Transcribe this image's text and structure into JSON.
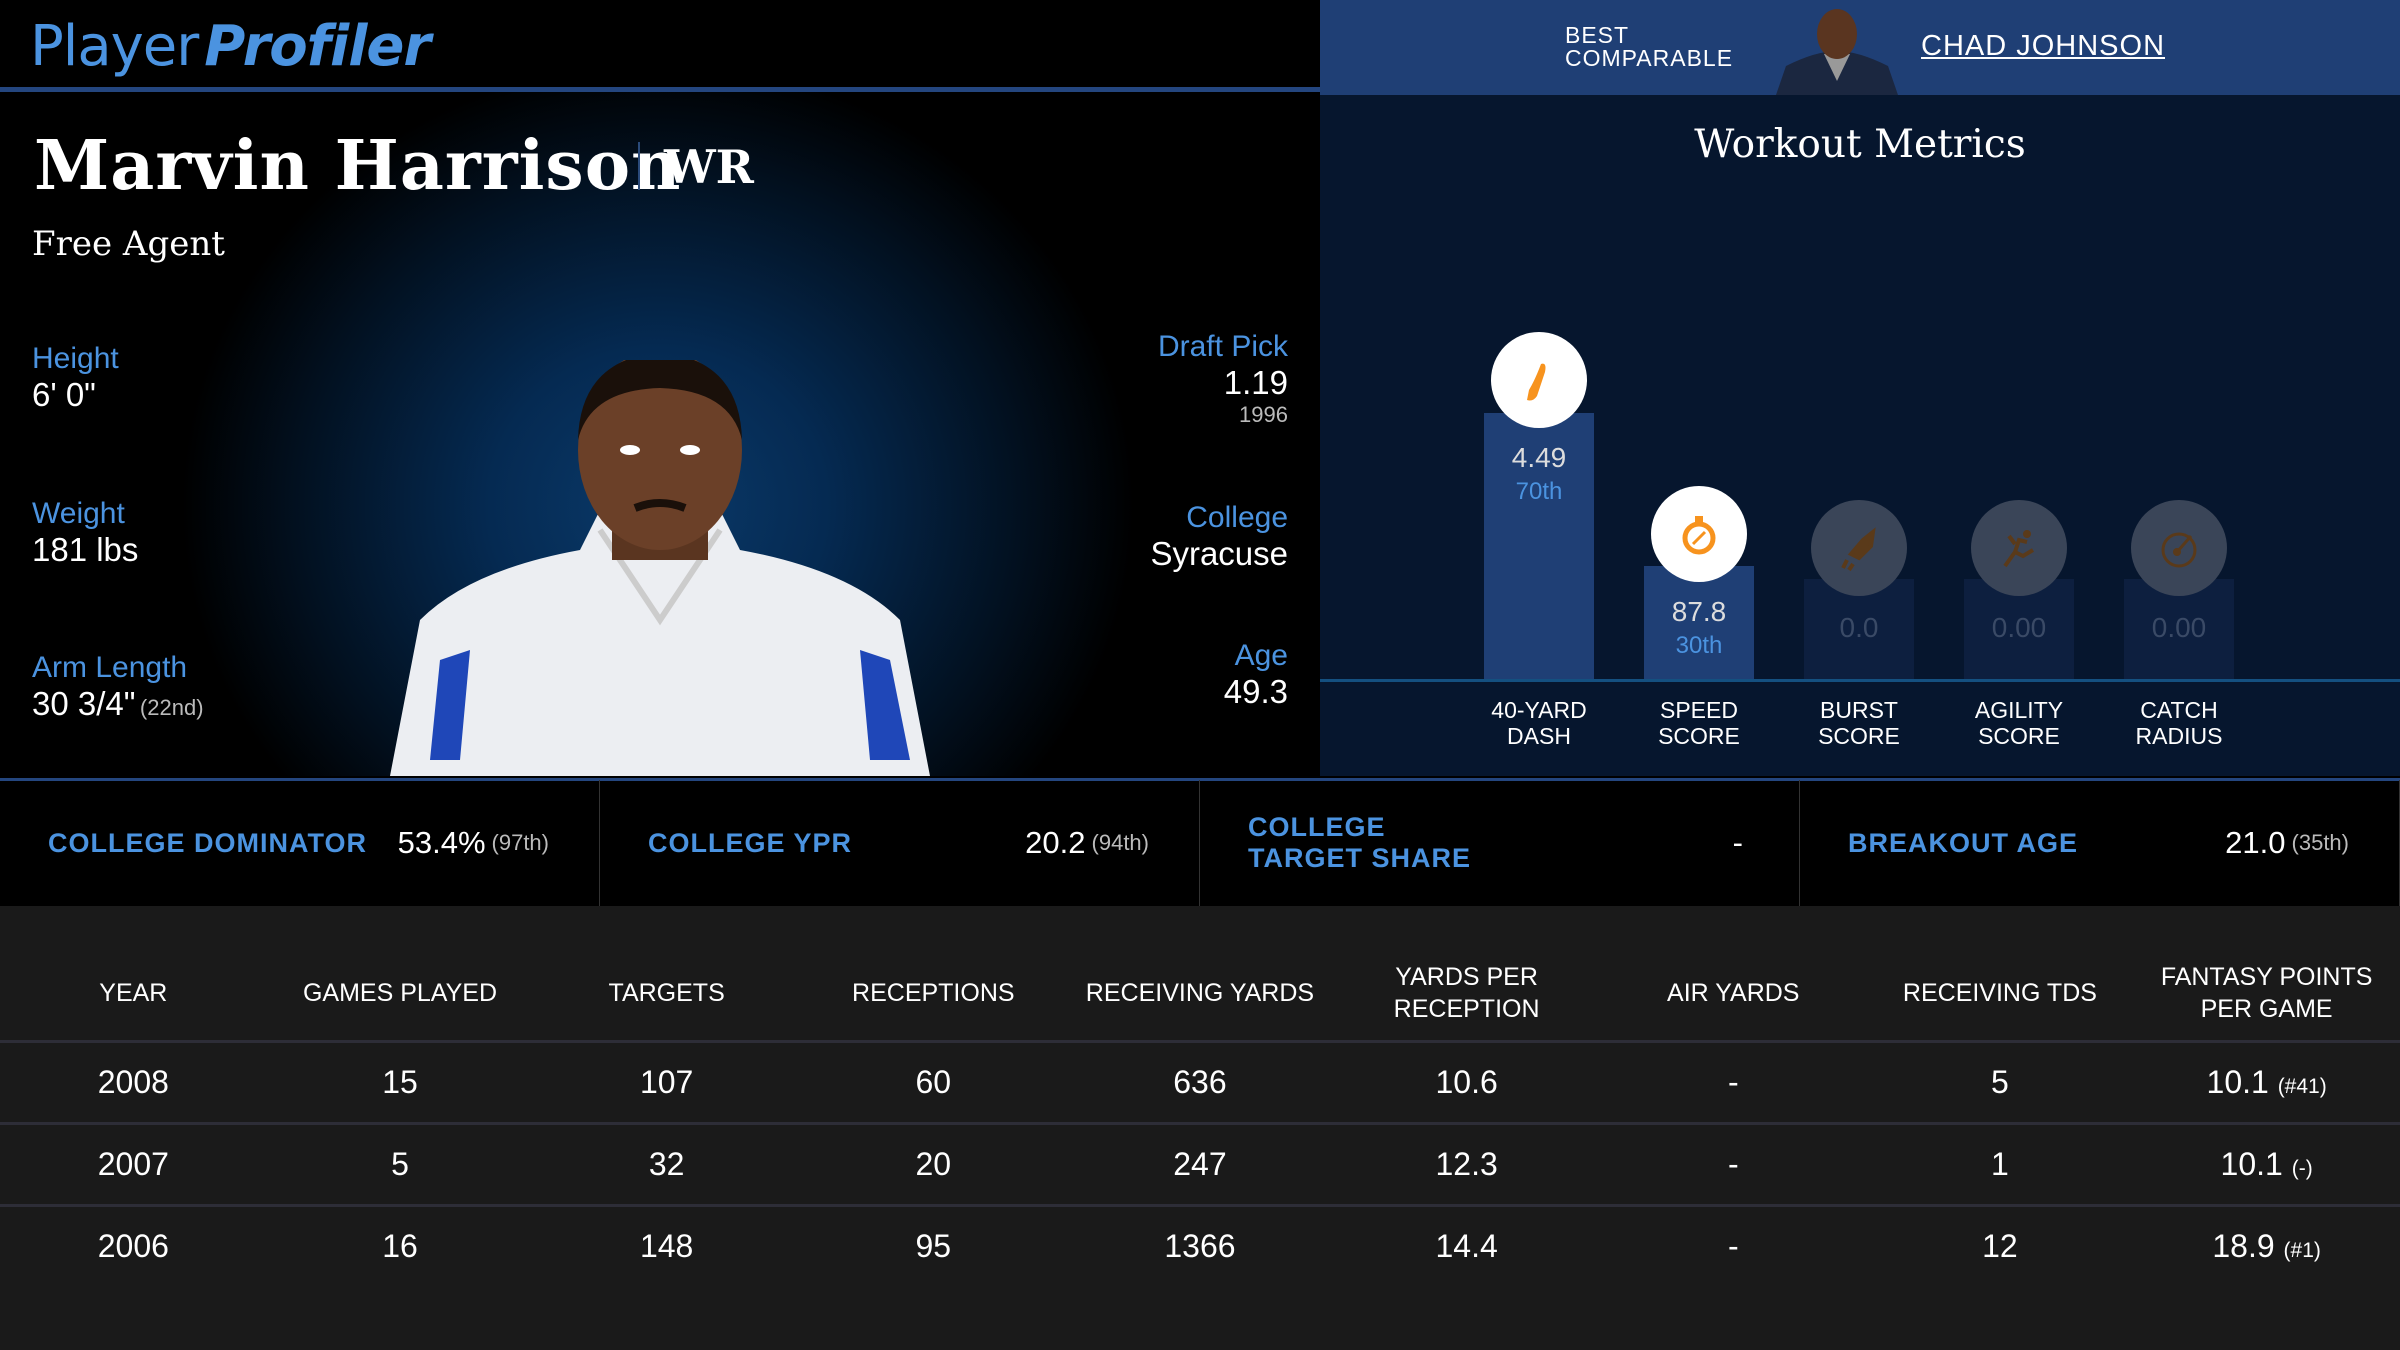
{
  "header": {
    "logo_part1": "Player",
    "logo_part2": "Profiler"
  },
  "player": {
    "name": "Marvin Harrison",
    "position": "WR",
    "team": "Free Agent"
  },
  "attributes_left": [
    {
      "label": "Height",
      "value": "6' 0\"",
      "sub": ""
    },
    {
      "label": "Weight",
      "value": "181 lbs",
      "sub": ""
    },
    {
      "label": "Arm Length",
      "value": "30 3/4\"",
      "sub": "(22nd)"
    }
  ],
  "attributes_right": [
    {
      "label": "Draft Pick",
      "value": "1.19",
      "sub": "1996"
    },
    {
      "label": "College",
      "value": "Syracuse",
      "sub": ""
    },
    {
      "label": "Age",
      "value": "49.3",
      "sub": ""
    }
  ],
  "comparable": {
    "label_line1": "BEST",
    "label_line2": "COMPARABLE",
    "name": "CHAD JOHNSON"
  },
  "workout": {
    "title": "Workout Metrics",
    "metrics": [
      {
        "label1": "40-YARD",
        "label2": "DASH",
        "value": "4.49",
        "percentile": "70th",
        "percentile_num": 70,
        "icon": "shoe-icon",
        "active": true
      },
      {
        "label1": "SPEED",
        "label2": "SCORE",
        "value": "87.8",
        "percentile": "30th",
        "percentile_num": 30,
        "icon": "stopwatch-icon",
        "active": true
      },
      {
        "label1": "BURST",
        "label2": "SCORE",
        "value": "0.0",
        "percentile": "",
        "percentile_num": 0,
        "icon": "rocket-icon",
        "active": false
      },
      {
        "label1": "AGILITY",
        "label2": "SCORE",
        "value": "0.00",
        "percentile": "",
        "percentile_num": 0,
        "icon": "runner-icon",
        "active": false
      },
      {
        "label1": "CATCH",
        "label2": "RADIUS",
        "value": "0.00",
        "percentile": "",
        "percentile_num": 0,
        "icon": "gauge-icon",
        "active": false
      }
    ]
  },
  "college": [
    {
      "label": "COLLEGE DOMINATOR",
      "value": "53.4%",
      "pct": "(97th)"
    },
    {
      "label": "COLLEGE YPR",
      "value": "20.2",
      "pct": "(94th)"
    },
    {
      "label": "COLLEGE TARGET SHARE",
      "value": "-",
      "pct": ""
    },
    {
      "label": "BREAKOUT AGE",
      "value": "21.0",
      "pct": "(35th)"
    }
  ],
  "stats": {
    "headers": [
      "YEAR",
      "GAMES PLAYED",
      "TARGETS",
      "RECEPTIONS",
      "RECEIVING YARDS",
      "YARDS PER RECEPTION",
      "AIR YARDS",
      "RECEIVING TDS",
      "FANTASY POINTS PER GAME"
    ],
    "rows": [
      [
        "2008",
        "15",
        "107",
        "60",
        "636",
        "10.6",
        "-",
        "5",
        "10.1",
        "(#41)"
      ],
      [
        "2007",
        "5",
        "32",
        "20",
        "247",
        "12.3",
        "-",
        "1",
        "10.1",
        "(-)"
      ],
      [
        "2006",
        "16",
        "148",
        "95",
        "1366",
        "14.4",
        "-",
        "12",
        "18.9",
        "(#1)"
      ]
    ]
  }
}
